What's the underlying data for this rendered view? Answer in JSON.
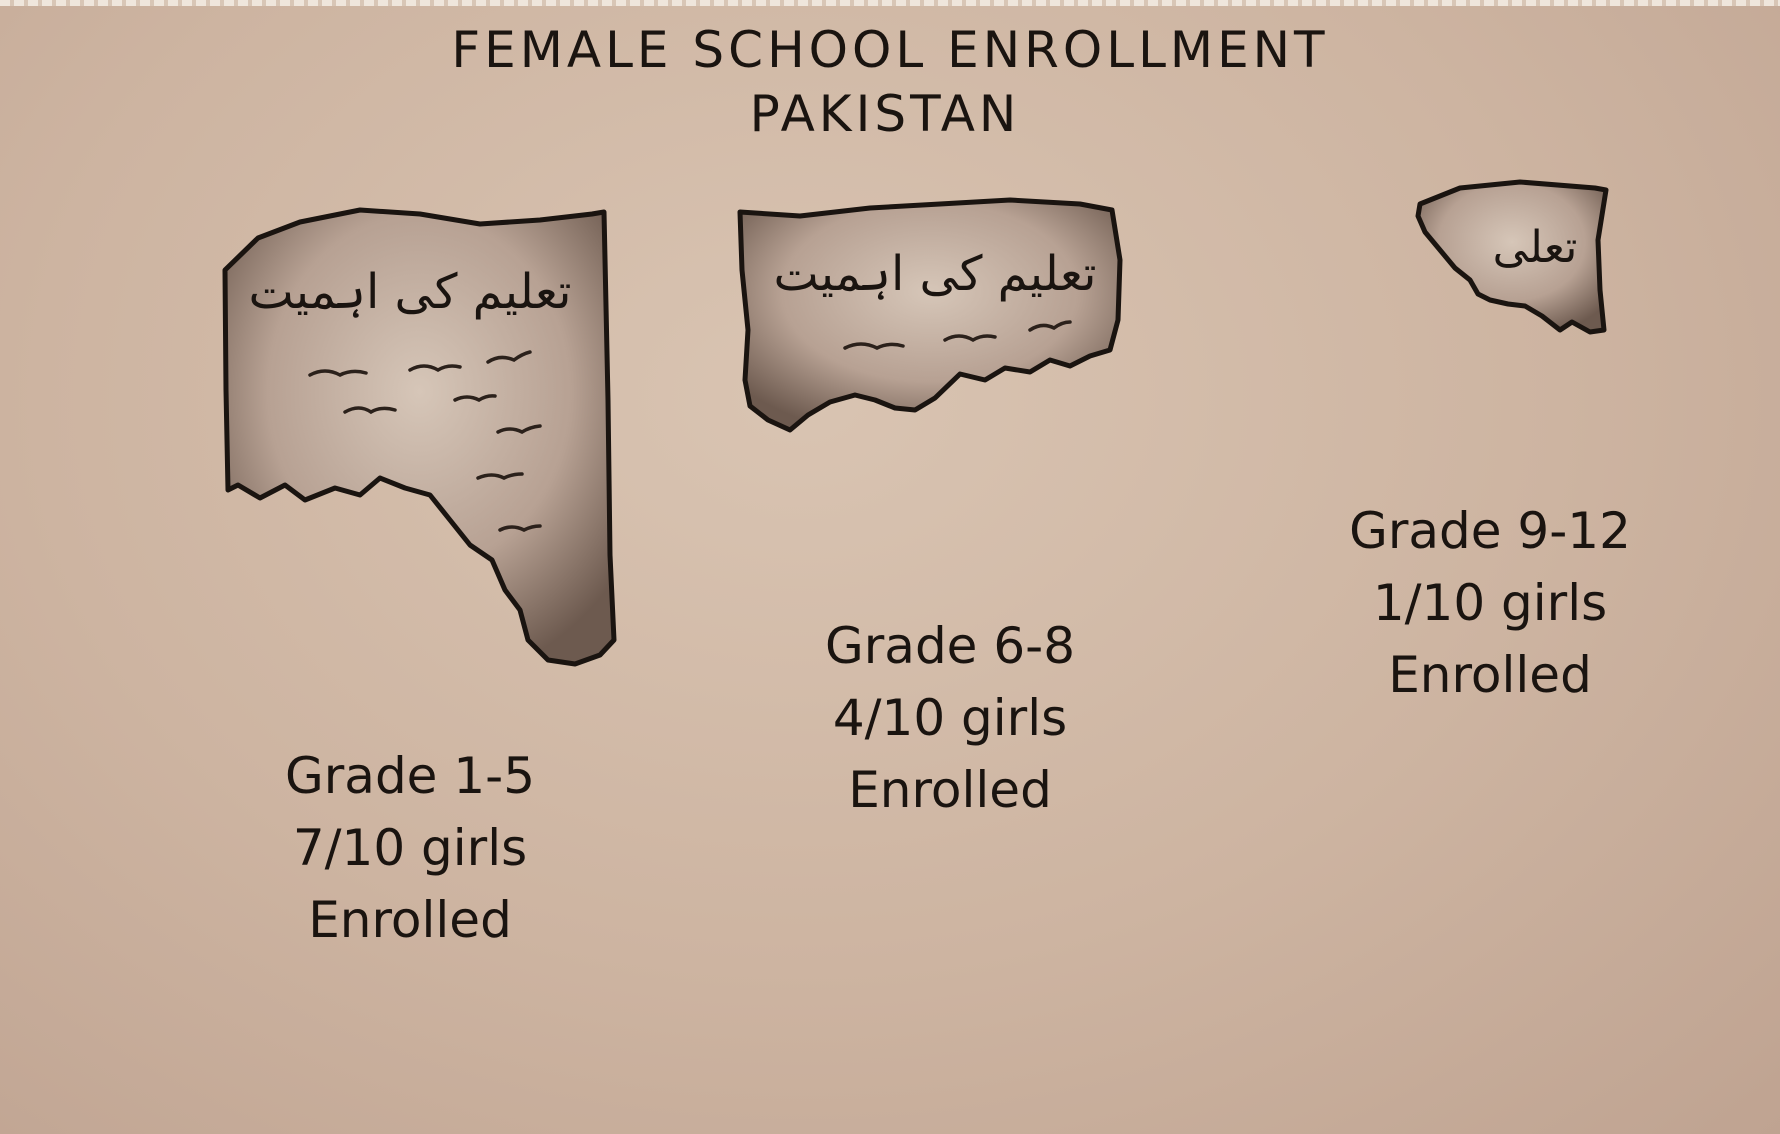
{
  "page": {
    "title": "FEMALE SCHOOL ENROLLMENT",
    "subtitle": "PAKISTAN",
    "background_color": "#cdb4a1",
    "ink_color": "#1a1410"
  },
  "chart_data": {
    "type": "bar",
    "title": "FEMALE SCHOOL ENROLLMENT",
    "subtitle": "PAKISTAN",
    "categories": [
      "Grade 1-5",
      "Grade 6-8",
      "Grade 9-12"
    ],
    "values": [
      7,
      4,
      1
    ],
    "denominator": 10,
    "unit_note": "girls per 10 enrolled",
    "encoding": "torn paper size",
    "labels": [
      {
        "grade": "Grade 1-5",
        "ratio": "7/10 girls",
        "status": "Enrolled",
        "paper_text": "تعلیم کی اہمیت"
      },
      {
        "grade": "Grade 6-8",
        "ratio": "4/10 girls",
        "status": "Enrolled",
        "paper_text": "تعلیم کی اہمیت"
      },
      {
        "grade": "Grade 9-12",
        "ratio": "1/10 girls",
        "status": "Enrolled",
        "paper_text": "تعلی"
      }
    ]
  }
}
